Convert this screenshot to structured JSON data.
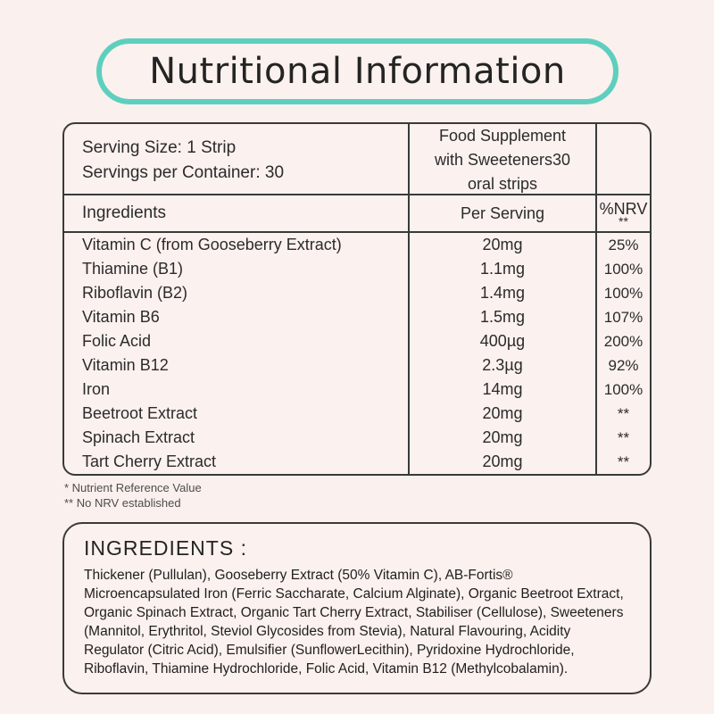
{
  "title": "Nutritional Information",
  "table": {
    "serving_info": "Serving Size: 1 Strip\nServings per Container: 30",
    "product_description": "Food Supplement\nwith Sweeteners30\noral strips",
    "columns": {
      "ingredients": "Ingredients",
      "per_serving": "Per Serving",
      "nrv": "%NRV",
      "nrv_footnote_mark": "**"
    },
    "rows": [
      {
        "ingredient": "Vitamin C (from Gooseberry Extract)",
        "per_serving": "20mg",
        "nrv": "25%"
      },
      {
        "ingredient": "Thiamine (B1)",
        "per_serving": "1.1mg",
        "nrv": "100%"
      },
      {
        "ingredient": "Riboflavin (B2)",
        "per_serving": "1.4mg",
        "nrv": "100%"
      },
      {
        "ingredient": "Vitamin B6",
        "per_serving": "1.5mg",
        "nrv": "107%"
      },
      {
        "ingredient": "Folic Acid",
        "per_serving": "400µg",
        "nrv": "200%"
      },
      {
        "ingredient": "Vitamin B12",
        "per_serving": "2.3µg",
        "nrv": "92%"
      },
      {
        "ingredient": "Iron",
        "per_serving": "14mg",
        "nrv": "100%"
      },
      {
        "ingredient": "Beetroot Extract",
        "per_serving": "20mg",
        "nrv": "**"
      },
      {
        "ingredient": "Spinach Extract",
        "per_serving": "20mg",
        "nrv": "**"
      },
      {
        "ingredient": "Tart Cherry Extract",
        "per_serving": "20mg",
        "nrv": "**"
      }
    ]
  },
  "footnotes": [
    "* Nutrient Reference Value",
    "** No NRV established"
  ],
  "ingredients": {
    "heading": "INGREDIENTS :",
    "text": "Thickener (Pullulan), Gooseberry Extract (50% Vitamin C), AB-Fortis® Microencapsulated Iron (Ferric Saccharate, Calcium Alginate), Organic Beetroot Extract, Organic Spinach Extract, Organic Tart Cherry Extract, Stabiliser (Cellulose), Sweeteners (Mannitol, Erythritol, Steviol Glycosides from Stevia), Natural Flavouring, Acidity Regulator (Citric Acid), Emulsifier (SunflowerLecithin), Pyridoxine Hydrochloride, Riboflavin, Thiamine Hydrochloride, Folic Acid, Vitamin B12 (Methylcobalamin)."
  },
  "colors": {
    "background": "#faf0ed",
    "accent_teal": "#5ecfbe",
    "border_dark": "#3a3a3a",
    "text": "#2b2b2b",
    "muted_text": "#4d4d4d"
  }
}
